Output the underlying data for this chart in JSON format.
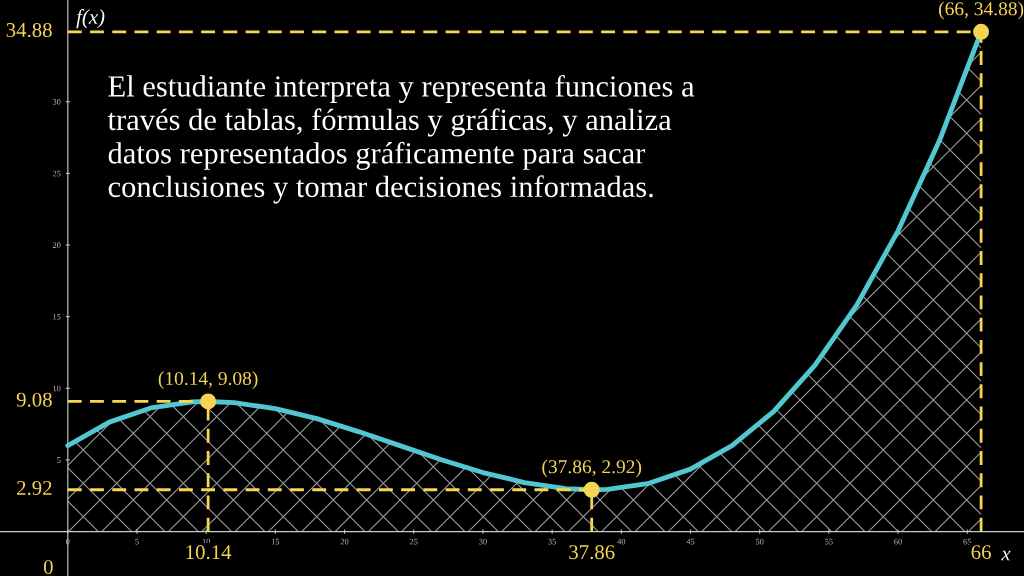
{
  "chart_data": {
    "type": "area",
    "xlabel": "x",
    "ylabel": "f(x)",
    "x": [
      0,
      3,
      6,
      9,
      10.14,
      12,
      15,
      18,
      21,
      24,
      27,
      30,
      33,
      36,
      37.86,
      39,
      42,
      45,
      48,
      51,
      54,
      57,
      60,
      63,
      66
    ],
    "series": [
      {
        "color": "#52c7d0",
        "values": [
          6.0,
          7.64,
          8.63,
          9.05,
          9.08,
          9.0,
          8.58,
          7.88,
          6.98,
          6.0,
          5.01,
          4.12,
          3.42,
          3.0,
          2.92,
          2.95,
          3.37,
          4.36,
          6.0,
          8.38,
          11.62,
          15.79,
          20.99,
          27.31,
          34.88
        ]
      },
      {
        "type": "scatter",
        "marker": "circle",
        "color": "#f6d553",
        "x": [
          10.14,
          37.86,
          66
        ],
        "values": [
          9.08,
          2.92,
          34.88
        ]
      }
    ],
    "xlim": [
      -4.9,
      69.1
    ],
    "ylim": [
      -3.1,
      37.1
    ],
    "xticks": [
      0,
      5,
      10,
      15,
      20,
      25,
      30,
      35,
      40,
      45,
      50,
      55,
      60,
      65
    ],
    "yticks": [
      5,
      10,
      15,
      20,
      25,
      30
    ],
    "ref_lines": [
      {
        "axis": "x",
        "value": 10.14,
        "label": "10.14",
        "color": "#f6d553",
        "line_style": "dashed"
      },
      {
        "axis": "x",
        "value": 37.86,
        "label": "37.86",
        "color": "#f6d553",
        "line_style": "dashed"
      },
      {
        "axis": "x",
        "value": 66,
        "label": "66",
        "color": "#f6d553",
        "line_style": "dashed"
      },
      {
        "axis": "y",
        "value": 9.08,
        "label": "9.08",
        "color": "#f6d553",
        "line_style": "dashed"
      },
      {
        "axis": "y",
        "value": 2.92,
        "label": "2.92",
        "color": "#f6d553",
        "line_style": "dashed"
      },
      {
        "axis": "y",
        "value": 34.88,
        "label": "34.88",
        "color": "#f6d553",
        "line_style": "dashed"
      }
    ],
    "annotations": [
      "El estudiante interpreta y representa funciones a\ntravés de tablas, fórmulas y gráficas, y analiza\ndatos representados gráficamente para sacar\nconclusiones y tomar decisiones informadas.",
      {
        "text": "(10.14, 9.08)",
        "x": 10.14,
        "y": 9.08
      },
      {
        "text": "(37.86, 2.92)",
        "x": 37.86,
        "y": 2.92
      },
      {
        "text": "(66, 34.88)",
        "x": 66,
        "y": 34.88
      },
      {
        "text": "0",
        "x": 0,
        "y": 0
      }
    ],
    "grid": false,
    "legend": false,
    "marker": "none",
    "line_style": "solid"
  }
}
